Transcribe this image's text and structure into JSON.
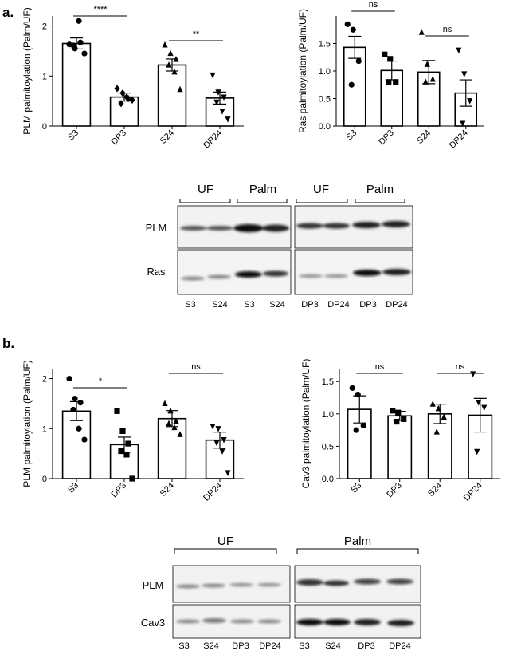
{
  "panels": {
    "a": {
      "label": "a."
    },
    "b": {
      "label": "b."
    }
  },
  "chart_data": [
    {
      "type": "bar",
      "panel": "a",
      "ylabel": "PLM palmitoylation (Palm/UF)",
      "categories": [
        "S3",
        "DP3",
        "S24",
        "DP24"
      ],
      "values": [
        1.65,
        0.58,
        1.22,
        0.56
      ],
      "sem": [
        0.11,
        0.08,
        0.12,
        0.12
      ],
      "points": [
        [
          1.63,
          1.55,
          1.67,
          1.61,
          2.1,
          1.45
        ],
        [
          0.75,
          0.66,
          0.55,
          0.45,
          0.58,
          0.52
        ],
        [
          1.62,
          1.45,
          1.33,
          1.22,
          1.08,
          0.73
        ],
        [
          1.02,
          0.68,
          0.58,
          0.48,
          0.3,
          0.14
        ]
      ],
      "markers": [
        "circle",
        "diamond",
        "triangle-up",
        "triangle-down"
      ],
      "ylim": [
        0,
        2.2
      ],
      "yticks": [
        0,
        1,
        2
      ],
      "annotations": [
        {
          "text": "****",
          "from": 0,
          "to": 1
        },
        {
          "text": "**",
          "from": 2,
          "to": 3
        }
      ]
    },
    {
      "type": "bar",
      "panel": "a",
      "ylabel": "Ras palmitoylation (Palm/UF)",
      "categories": [
        "S3",
        "DP3",
        "S24",
        "DP24"
      ],
      "values": [
        1.43,
        1.01,
        0.98,
        0.6
      ],
      "sem": [
        0.2,
        0.17,
        0.21,
        0.24
      ],
      "points": [
        [
          1.85,
          1.75,
          1.18,
          0.75
        ],
        [
          1.3,
          1.22,
          0.8,
          0.8
        ],
        [
          1.7,
          1.12,
          0.85,
          0.8
        ],
        [
          1.38,
          0.95,
          0.46,
          0.05
        ]
      ],
      "markers": [
        "circle",
        "square",
        "triangle-up",
        "triangle-down"
      ],
      "ylim": [
        0,
        2.0
      ],
      "yticks": [
        0,
        0.5,
        1.0,
        1.5
      ],
      "annotations": [
        {
          "text": "ns",
          "from": 0,
          "to": 1
        },
        {
          "text": "ns",
          "from": 2,
          "to": 3
        }
      ]
    },
    {
      "type": "bar",
      "panel": "b",
      "ylabel": "PLM palmitoylation (Palm/UF)",
      "categories": [
        "S3",
        "DP3",
        "S24",
        "DP24"
      ],
      "values": [
        1.35,
        0.68,
        1.2,
        0.77
      ],
      "sem": [
        0.19,
        0.15,
        0.16,
        0.16
      ],
      "points": [
        [
          2.0,
          1.6,
          1.52,
          1.38,
          1.0,
          0.78
        ],
        [
          1.35,
          0.95,
          0.7,
          0.55,
          0.48,
          0.0
        ],
        [
          1.5,
          1.35,
          1.15,
          1.1,
          1.02,
          0.88
        ],
        [
          1.05,
          1.0,
          0.78,
          0.72,
          0.55,
          0.12
        ]
      ],
      "markers": [
        "circle",
        "square",
        "triangle-up",
        "triangle-down"
      ],
      "ylim": [
        0,
        2.2
      ],
      "yticks": [
        0,
        1,
        2
      ],
      "annotations": [
        {
          "text": "*",
          "from": 0,
          "to": 1
        },
        {
          "text": "ns",
          "from": 2,
          "to": 3
        }
      ]
    },
    {
      "type": "bar",
      "panel": "b",
      "ylabel": "Cav3 palmitoylation (Palm/UF)",
      "categories": [
        "S3",
        "DP3",
        "S24",
        "DP24"
      ],
      "values": [
        1.07,
        0.97,
        1.0,
        0.98
      ],
      "sem": [
        0.21,
        0.07,
        0.15,
        0.26
      ],
      "points": [
        [
          1.4,
          1.3,
          0.82,
          0.75
        ],
        [
          1.05,
          1.02,
          0.92,
          0.88
        ],
        [
          1.15,
          1.08,
          0.95,
          0.72
        ],
        [
          1.62,
          1.18,
          1.1,
          0.42
        ]
      ],
      "markers": [
        "circle",
        "square",
        "triangle-up",
        "triangle-down"
      ],
      "ylim": [
        0,
        1.7
      ],
      "yticks": [
        0,
        0.5,
        1.0,
        1.5
      ],
      "annotations": [
        {
          "text": "ns",
          "from": 0,
          "to": 1
        },
        {
          "text": "ns",
          "from": 2,
          "to": 3
        }
      ]
    }
  ],
  "blots": {
    "a": {
      "left_headers": [
        "UF",
        "Palm"
      ],
      "right_headers": [
        "UF",
        "Palm"
      ],
      "rows": [
        "PLM",
        "Ras"
      ],
      "left_lanes": [
        "S3",
        "S24",
        "S3",
        "S24"
      ],
      "right_lanes": [
        "DP3",
        "DP24",
        "DP3",
        "DP24"
      ]
    },
    "b": {
      "left_header": "UF",
      "right_header": "Palm",
      "rows": [
        "PLM",
        "Cav3"
      ],
      "left_lanes": [
        "S3",
        "S24",
        "DP3",
        "DP24"
      ],
      "right_lanes": [
        "S3",
        "S24",
        "DP3",
        "DP24"
      ]
    }
  }
}
